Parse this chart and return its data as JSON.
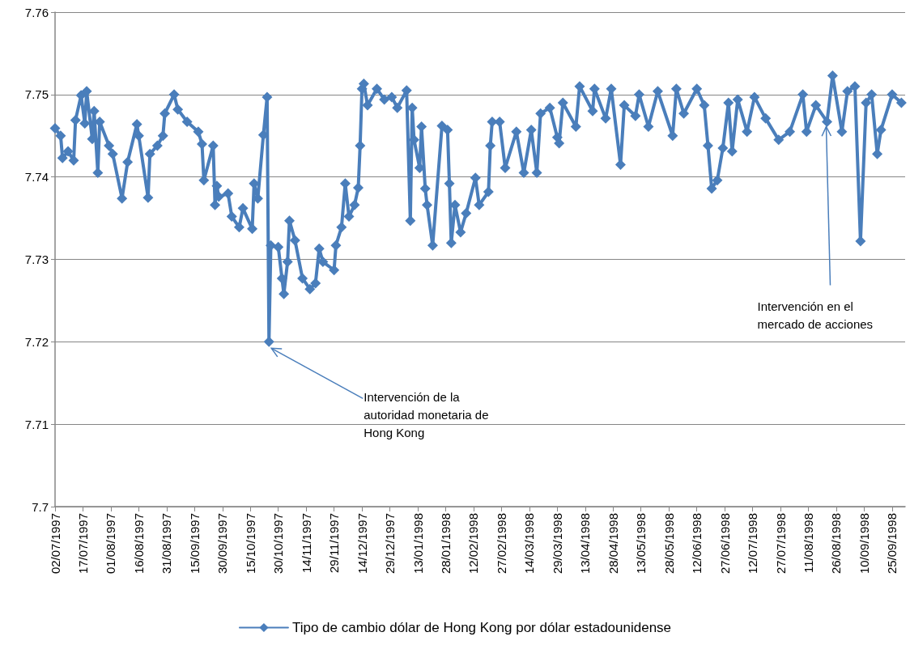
{
  "chart_data": {
    "type": "line",
    "x": [
      "1997-07-02",
      "1997-07-05",
      "1997-07-06",
      "1997-07-09",
      "1997-07-12",
      "1997-07-13",
      "1997-07-16",
      "1997-07-18",
      "1997-07-19",
      "1997-07-22",
      "1997-07-23",
      "1997-07-25",
      "1997-07-26",
      "1997-07-31",
      "1997-08-02",
      "1997-08-07",
      "1997-08-10",
      "1997-08-15",
      "1997-08-16",
      "1997-08-21",
      "1997-08-22",
      "1997-08-26",
      "1997-08-29",
      "1997-08-30",
      "1997-09-04",
      "1997-09-06",
      "1997-09-11",
      "1997-09-17",
      "1997-09-19",
      "1997-09-20",
      "1997-09-25",
      "1997-09-26",
      "1997-09-27",
      "1997-09-28",
      "1997-10-03",
      "1997-10-05",
      "1997-10-09",
      "1997-10-11",
      "1997-10-16",
      "1997-10-17",
      "1997-10-19",
      "1997-10-22",
      "1997-10-24",
      "1997-10-25",
      "1997-10-26",
      "1997-10-30",
      "1997-11-01",
      "1997-11-02",
      "1997-11-04",
      "1997-11-05",
      "1997-11-08",
      "1997-11-12",
      "1997-11-16",
      "1997-11-19",
      "1997-11-21",
      "1997-11-23",
      "1997-11-29",
      "1997-11-30",
      "1997-12-03",
      "1997-12-05",
      "1997-12-07",
      "1997-12-10",
      "1997-12-12",
      "1997-12-13",
      "1997-12-14",
      "1997-12-15",
      "1997-12-17",
      "1997-12-22",
      "1997-12-26",
      "1997-12-30",
      "1998-01-02",
      "1998-01-07",
      "1998-01-09",
      "1998-01-10",
      "1998-01-11",
      "1998-01-14",
      "1998-01-15",
      "1998-01-17",
      "1998-01-18",
      "1998-01-21",
      "1998-01-26",
      "1998-01-29",
      "1998-01-30",
      "1998-01-31",
      "1998-02-02",
      "1998-02-05",
      "1998-02-08",
      "1998-02-13",
      "1998-02-15",
      "1998-02-20",
      "1998-02-21",
      "1998-02-22",
      "1998-02-26",
      "1998-03-01",
      "1998-03-07",
      "1998-03-11",
      "1998-03-15",
      "1998-03-18",
      "1998-03-20",
      "1998-03-25",
      "1998-03-29",
      "1998-03-30",
      "1998-04-01",
      "1998-04-08",
      "1998-04-10",
      "1998-04-17",
      "1998-04-18",
      "1998-04-24",
      "1998-04-27",
      "1998-05-02",
      "1998-05-04",
      "1998-05-10",
      "1998-05-12",
      "1998-05-17",
      "1998-05-22",
      "1998-05-30",
      "1998-06-01",
      "1998-06-05",
      "1998-06-12",
      "1998-06-16",
      "1998-06-18",
      "1998-06-20",
      "1998-06-23",
      "1998-06-26",
      "1998-06-29",
      "1998-07-01",
      "1998-07-04",
      "1998-07-09",
      "1998-07-13",
      "1998-07-19",
      "1998-07-26",
      "1998-08-01",
      "1998-08-08",
      "1998-08-10",
      "1998-08-15",
      "1998-08-21",
      "1998-08-24",
      "1998-08-29",
      "1998-09-01",
      "1998-09-05",
      "1998-09-08",
      "1998-09-11",
      "1998-09-14",
      "1998-09-17",
      "1998-09-19",
      "1998-09-25",
      "1998-09-30"
    ],
    "series": [
      {
        "name": "Tipo de cambio dólar de Hong Kong por dólar estadounidense",
        "color": "#4a7ebb",
        "values": [
          7.7459,
          7.745,
          7.7423,
          7.7431,
          7.742,
          7.7469,
          7.7499,
          7.7465,
          7.7504,
          7.7446,
          7.748,
          7.7405,
          7.7467,
          7.7438,
          7.7428,
          7.7374,
          7.7418,
          7.7464,
          7.745,
          7.7375,
          7.7428,
          7.7438,
          7.745,
          7.7477,
          7.75,
          7.7482,
          7.7467,
          7.7455,
          7.744,
          7.7396,
          7.7438,
          7.7366,
          7.7389,
          7.7376,
          7.738,
          7.7352,
          7.7339,
          7.7362,
          7.7337,
          7.7392,
          7.7374,
          7.7451,
          7.7497,
          7.72,
          7.7317,
          7.7315,
          7.7277,
          7.7258,
          7.7297,
          7.7347,
          7.7323,
          7.7277,
          7.7264,
          7.7271,
          7.7313,
          7.7297,
          7.7287,
          7.7317,
          7.7339,
          7.7392,
          7.7352,
          7.7366,
          7.7387,
          7.7438,
          7.7507,
          7.7513,
          7.7487,
          7.7507,
          7.7494,
          7.7497,
          7.7484,
          7.7505,
          7.7347,
          7.7484,
          7.7445,
          7.7411,
          7.7461,
          7.7386,
          7.7366,
          7.7317,
          7.7462,
          7.7457,
          7.7392,
          7.732,
          7.7366,
          7.7333,
          7.7356,
          7.7399,
          7.7366,
          7.7382,
          7.7438,
          7.7467,
          7.7467,
          7.7411,
          7.7455,
          7.7405,
          7.7457,
          7.7405,
          7.7477,
          7.7484,
          7.7448,
          7.7441,
          7.749,
          7.7461,
          7.751,
          7.748,
          7.7507,
          7.7471,
          7.7507,
          7.7415,
          7.7487,
          7.7474,
          7.75,
          7.7461,
          7.7504,
          7.745,
          7.7507,
          7.7477,
          7.7507,
          7.7487,
          7.7438,
          7.7386,
          7.7396,
          7.7435,
          7.749,
          7.7431,
          7.7494,
          7.7455,
          7.7497,
          7.7471,
          7.7445,
          7.7455,
          7.75,
          7.7455,
          7.7487,
          7.7467,
          7.7523,
          7.7455,
          7.7504,
          7.751,
          7.7322,
          7.749,
          7.75,
          7.7428,
          7.7457,
          7.75,
          7.749
        ]
      }
    ],
    "xlim": [
      "1997-07-02",
      "1998-10-02"
    ],
    "xticks": [
      {
        "value": "1997-07-02",
        "label": "02/07/1997"
      },
      {
        "value": "1997-07-17",
        "label": "17/07/1997"
      },
      {
        "value": "1997-08-01",
        "label": "01/08/1997"
      },
      {
        "value": "1997-08-16",
        "label": "16/08/1997"
      },
      {
        "value": "1997-08-31",
        "label": "31/08/1997"
      },
      {
        "value": "1997-09-15",
        "label": "15/09/1997"
      },
      {
        "value": "1997-09-30",
        "label": "30/09/1997"
      },
      {
        "value": "1997-10-15",
        "label": "15/10/1997"
      },
      {
        "value": "1997-10-30",
        "label": "30/10/1997"
      },
      {
        "value": "1997-11-14",
        "label": "14/11/1997"
      },
      {
        "value": "1997-11-29",
        "label": "29/11/1997"
      },
      {
        "value": "1997-12-14",
        "label": "14/12/1997"
      },
      {
        "value": "1997-12-29",
        "label": "29/12/1997"
      },
      {
        "value": "1998-01-13",
        "label": "13/01/1998"
      },
      {
        "value": "1998-01-28",
        "label": "28/01/1998"
      },
      {
        "value": "1998-02-12",
        "label": "12/02/1998"
      },
      {
        "value": "1998-02-27",
        "label": "27/02/1998"
      },
      {
        "value": "1998-03-14",
        "label": "14/03/1998"
      },
      {
        "value": "1998-03-29",
        "label": "29/03/1998"
      },
      {
        "value": "1998-04-13",
        "label": "13/04/1998"
      },
      {
        "value": "1998-04-28",
        "label": "28/04/1998"
      },
      {
        "value": "1998-05-13",
        "label": "13/05/1998"
      },
      {
        "value": "1998-05-28",
        "label": "28/05/1998"
      },
      {
        "value": "1998-06-12",
        "label": "12/06/1998"
      },
      {
        "value": "1998-06-27",
        "label": "27/06/1998"
      },
      {
        "value": "1998-07-12",
        "label": "12/07/1998"
      },
      {
        "value": "1998-07-27",
        "label": "27/07/1998"
      },
      {
        "value": "1998-08-11",
        "label": "11/08/1998"
      },
      {
        "value": "1998-08-26",
        "label": "26/08/1998"
      },
      {
        "value": "1998-09-10",
        "label": "10/09/1998"
      },
      {
        "value": "1998-09-25",
        "label": "25/09/1998"
      }
    ],
    "ylim": [
      7.7,
      7.76
    ],
    "yticks": [
      7.7,
      7.71,
      7.72,
      7.73,
      7.74,
      7.75,
      7.76
    ],
    "grid": "y",
    "legend": "bottom",
    "marker": "diamond",
    "line_style": "solid",
    "annotations": [
      {
        "text": "Intervención de la autoridad monetaria de Hong Kong",
        "x": "1997-10-25",
        "y": 7.72
      },
      {
        "text": "Intervención en el mercado de acciones",
        "x": "1998-08-21",
        "y": 7.7467
      }
    ]
  }
}
